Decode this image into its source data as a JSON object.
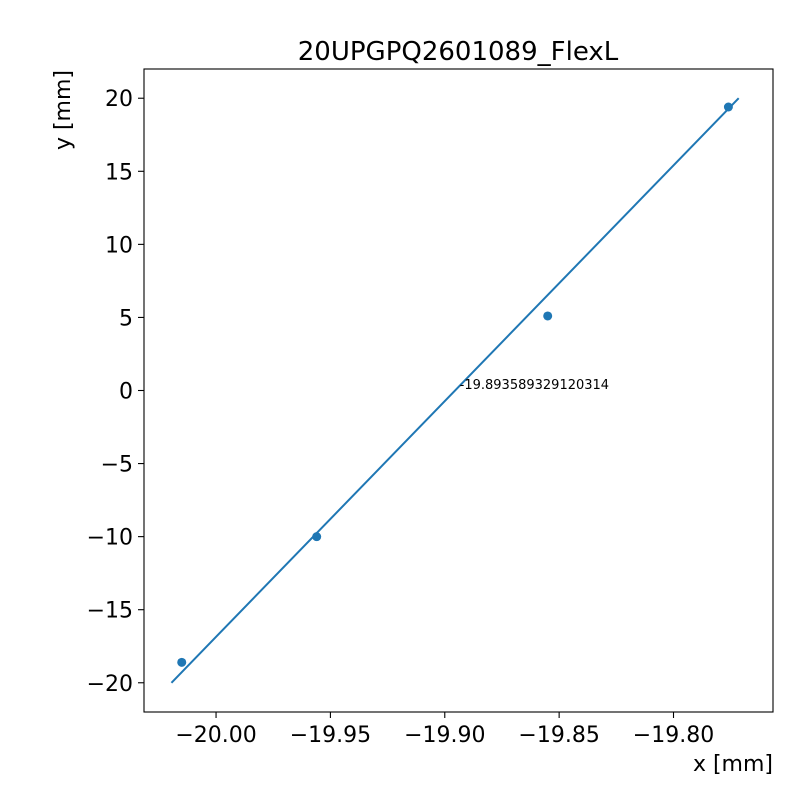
{
  "chart_data": {
    "type": "scatter",
    "title": "20UPGPQ2601089_FlexL",
    "xlabel": "x [mm]",
    "ylabel": "y [mm]",
    "xlim": [
      -20.0315,
      -19.7565
    ],
    "ylim": [
      -22,
      22
    ],
    "grid": false,
    "legend": "none",
    "x_ticks": [
      -20.0,
      -19.95,
      -19.9,
      -19.85,
      -19.8
    ],
    "x_tick_labels": [
      "−20.00",
      "−19.95",
      "−19.90",
      "−19.85",
      "−19.80"
    ],
    "y_ticks": [
      -20,
      -15,
      -10,
      -5,
      0,
      5,
      10,
      15,
      20
    ],
    "y_tick_labels": [
      "−20",
      "−15",
      "−10",
      "−5",
      "0",
      "5",
      "10",
      "15",
      "20"
    ],
    "series": [
      {
        "kind": "scatter",
        "color": "#1f77b4",
        "x": [
          -20.015,
          -19.956,
          -19.855,
          -19.776
        ],
        "y": [
          -18.6,
          -10.0,
          5.1,
          19.4
        ]
      },
      {
        "kind": "line",
        "color": "#1f77b4",
        "x": [
          -20.0195,
          -19.7715
        ],
        "y": [
          -20.0,
          20.0
        ]
      }
    ],
    "annotations": [
      {
        "text": "-19.893589329120314",
        "x": -19.8935,
        "y": 0.1
      }
    ]
  }
}
